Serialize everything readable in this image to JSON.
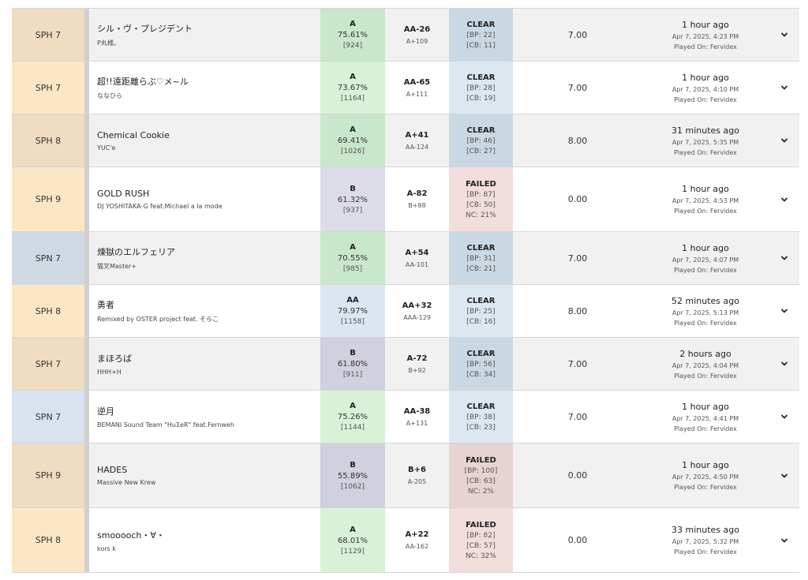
{
  "colors": {
    "diff_orange": "#fbe7c6",
    "diff_orange_dim": "#f0dcc0",
    "diff_blue": "#d8e3ef",
    "diff_blue_dim": "#cfd9e3",
    "grade_a": "#d8f2d7",
    "grade_a_dim": "#c9e7ca",
    "grade_aa": "#dbe6f1",
    "grade_b": "#dcdce9",
    "lamp_clear": "#dce7f0",
    "lamp_clear_dim": "#cad8e3",
    "lamp_failed": "#f2dddd",
    "strip": "#cfcfcf"
  },
  "rows": [
    {
      "diff": "SPH 7",
      "diff_color": "#f0dcc0",
      "title": "シル・ヴ・プレジデント",
      "artist": "P丸様。",
      "grade": "A",
      "percent": "75.61%",
      "ex": "[924]",
      "grade_color": "#c9e7ca",
      "diff_grade": "AA-26",
      "diff_grade_sub": "A+109",
      "lamp": "CLEAR",
      "bp": "[BP: 22]",
      "cb": "[CB: 11]",
      "nc": "",
      "lamp_color": "#cad8e3",
      "rating": "7.00",
      "time_rel": "1 hour ago",
      "time_abs": "Apr 7, 2025, 4:23 PM",
      "played_on": "Played On: Fervidex",
      "height": 67
    },
    {
      "diff": "SPH 7",
      "diff_color": "#fbe7c6",
      "title": "超!!遠距離らぶ♡メ~ル",
      "artist": "ななひら",
      "grade": "A",
      "percent": "73.67%",
      "ex": "[1164]",
      "grade_color": "#d8f2d7",
      "diff_grade": "AA-65",
      "diff_grade_sub": "A+111",
      "lamp": "CLEAR",
      "bp": "[BP: 28]",
      "cb": "[CB: 19]",
      "nc": "",
      "lamp_color": "#dce7f0",
      "rating": "7.00",
      "time_rel": "1 hour ago",
      "time_abs": "Apr 7, 2025, 4:10 PM",
      "played_on": "Played On: Fervidex",
      "height": 67
    },
    {
      "diff": "SPH 8",
      "diff_color": "#f0dcc0",
      "title": "Chemical Cookie",
      "artist": "YUC'e",
      "grade": "A",
      "percent": "69.41%",
      "ex": "[1026]",
      "grade_color": "#c9e7ca",
      "diff_grade": "A+41",
      "diff_grade_sub": "AA-124",
      "lamp": "CLEAR",
      "bp": "[BP: 46]",
      "cb": "[CB: 27]",
      "nc": "",
      "lamp_color": "#cad8e3",
      "rating": "8.00",
      "time_rel": "31 minutes ago",
      "time_abs": "Apr 7, 2025, 5:35 PM",
      "played_on": "Played On: Fervidex",
      "height": 67
    },
    {
      "diff": "SPH 9",
      "diff_color": "#fbe7c6",
      "title": "GOLD RUSH",
      "artist": "DJ YOSHITAKA-G feat.Michael a la mode",
      "grade": "B",
      "percent": "61.32%",
      "ex": "[937]",
      "grade_color": "#dcdce9",
      "diff_grade": "A-82",
      "diff_grade_sub": "B+88",
      "lamp": "FAILED",
      "bp": "[BP: 87]",
      "cb": "[CB: 50]",
      "nc": "NC: 21%",
      "lamp_color": "#f2dddd",
      "rating": "0.00",
      "time_rel": "1 hour ago",
      "time_abs": "Apr 7, 2025, 4:53 PM",
      "played_on": "Played On: Fervidex",
      "height": 82
    },
    {
      "diff": "SPN 7",
      "diff_color": "#cfd9e3",
      "title": "煉獄のエルフェリア",
      "artist": "猫叉Master+",
      "grade": "A",
      "percent": "70.55%",
      "ex": "[985]",
      "grade_color": "#c9e7ca",
      "diff_grade": "A+54",
      "diff_grade_sub": "AA-101",
      "lamp": "CLEAR",
      "bp": "[BP: 31]",
      "cb": "[CB: 21]",
      "nc": "",
      "lamp_color": "#cad8e3",
      "rating": "7.00",
      "time_rel": "1 hour ago",
      "time_abs": "Apr 7, 2025, 4:07 PM",
      "played_on": "Played On: Fervidex",
      "height": 67
    },
    {
      "diff": "SPH 8",
      "diff_color": "#fbe7c6",
      "title": "勇者",
      "artist": "Remixed by OSTER project feat. そらこ",
      "grade": "AA",
      "percent": "79.97%",
      "ex": "[1158]",
      "grade_color": "#dbe6f1",
      "diff_grade": "AA+32",
      "diff_grade_sub": "AAA-129",
      "lamp": "CLEAR",
      "bp": "[BP: 25]",
      "cb": "[CB: 16]",
      "nc": "",
      "lamp_color": "#dce7f0",
      "rating": "8.00",
      "time_rel": "52 minutes ago",
      "time_abs": "Apr 7, 2025, 5:13 PM",
      "played_on": "Played On: Fervidex",
      "height": 67
    },
    {
      "diff": "SPH 7",
      "diff_color": "#f0dcc0",
      "title": "まほろば",
      "artist": "HHH+H",
      "grade": "B",
      "percent": "61.80%",
      "ex": "[911]",
      "grade_color": "#d0d0de",
      "diff_grade": "A-72",
      "diff_grade_sub": "B+92",
      "lamp": "CLEAR",
      "bp": "[BP: 56]",
      "cb": "[CB: 34]",
      "nc": "",
      "lamp_color": "#cad8e3",
      "rating": "7.00",
      "time_rel": "2 hours ago",
      "time_abs": "Apr 7, 2025, 4:04 PM",
      "played_on": "Played On: Fervidex",
      "height": 67
    },
    {
      "diff": "SPN 7",
      "diff_color": "#d8e3ef",
      "title": "逆月",
      "artist": "BEMANI Sound Team \"HuΣeR\" feat.Fernweh",
      "grade": "A",
      "percent": "75.26%",
      "ex": "[1144]",
      "grade_color": "#d8f2d7",
      "diff_grade": "AA-38",
      "diff_grade_sub": "A+131",
      "lamp": "CLEAR",
      "bp": "[BP: 38]",
      "cb": "[CB: 23]",
      "nc": "",
      "lamp_color": "#dce7f0",
      "rating": "7.00",
      "time_rel": "1 hour ago",
      "time_abs": "Apr 7, 2025, 4:41 PM",
      "played_on": "Played On: Fervidex",
      "height": 67
    },
    {
      "diff": "SPH 9",
      "diff_color": "#f0dcc0",
      "title": "HADES",
      "artist": "Massive New Krew",
      "grade": "B",
      "percent": "55.89%",
      "ex": "[1062]",
      "grade_color": "#d0d0de",
      "diff_grade": "B+6",
      "diff_grade_sub": "A-205",
      "lamp": "FAILED",
      "bp": "[BP: 100]",
      "cb": "[CB: 63]",
      "nc": "NC: 2%",
      "lamp_color": "#e8d3d3",
      "rating": "0.00",
      "time_rel": "1 hour ago",
      "time_abs": "Apr 7, 2025, 4:50 PM",
      "played_on": "Played On: Fervidex",
      "height": 82
    },
    {
      "diff": "SPH 8",
      "diff_color": "#fbe7c6",
      "title": "smooooch・∀・",
      "artist": "kors k",
      "grade": "A",
      "percent": "68.01%",
      "ex": "[1129]",
      "grade_color": "#d8f2d7",
      "diff_grade": "A+22",
      "diff_grade_sub": "AA-162",
      "lamp": "FAILED",
      "bp": "[BP: 82]",
      "cb": "[CB: 57]",
      "nc": "NC: 32%",
      "lamp_color": "#f2dddd",
      "rating": "0.00",
      "time_rel": "33 minutes ago",
      "time_abs": "Apr 7, 2025, 5:32 PM",
      "played_on": "Played On: Fervidex",
      "height": 82
    }
  ]
}
